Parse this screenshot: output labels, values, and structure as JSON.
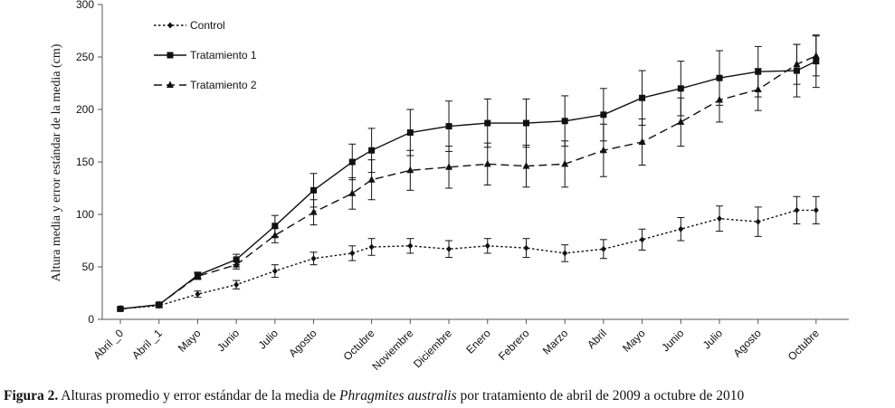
{
  "chart_data": {
    "type": "line",
    "ylabel": "Altura media y error estándar de la media (cm)",
    "xlabel": "",
    "ylim": [
      0,
      300
    ],
    "yticks": [
      0,
      50,
      100,
      150,
      200,
      250,
      300
    ],
    "grid": false,
    "legend_position": "top-left",
    "categories": [
      "Abril _0",
      "Abril _1",
      "Mayo",
      "Junio",
      "Julio",
      "Agosto",
      "Octubre",
      "Noviembre",
      "Diciembre",
      "Enero",
      "Febrero",
      "Marzo",
      "Abril",
      "Mayo",
      "Junio",
      "Julio",
      "Agosto",
      "Octubre"
    ],
    "x": [
      0,
      1,
      2,
      3,
      4,
      5,
      6.5,
      7.5,
      8.5,
      9.5,
      10.5,
      11.5,
      12.5,
      13.5,
      14.5,
      15.5,
      16.5,
      18
    ],
    "series": [
      {
        "name": "Control",
        "style": "dotted",
        "marker": "diamond",
        "x": [
          0,
          1,
          2,
          3,
          4,
          5,
          6,
          6.5,
          7.5,
          8.5,
          9.5,
          10.5,
          11.5,
          12.5,
          13.5,
          14.5,
          15.5,
          16.5,
          17.5,
          18
        ],
        "values": [
          10,
          13,
          24,
          33,
          46,
          58,
          63,
          69,
          70,
          67,
          70,
          68,
          63,
          67,
          76,
          86,
          96,
          93,
          104,
          104
        ],
        "errors": [
          1,
          2,
          3,
          4,
          6,
          6,
          7,
          8,
          7,
          8,
          7,
          9,
          8,
          9,
          10,
          11,
          12,
          14,
          13,
          13
        ]
      },
      {
        "name": "Tratamiento 1",
        "style": "solid",
        "marker": "square",
        "x": [
          0,
          1,
          2,
          3,
          4,
          5,
          6,
          6.5,
          7.5,
          8.5,
          9.5,
          10.5,
          11.5,
          12.5,
          13.5,
          14.5,
          15.5,
          16.5,
          17.5,
          18
        ],
        "values": [
          10,
          14,
          42,
          57,
          89,
          123,
          150,
          161,
          178,
          184,
          187,
          187,
          189,
          195,
          211,
          220,
          230,
          236,
          237,
          246
        ],
        "errors": [
          1,
          2,
          3,
          5,
          10,
          16,
          17,
          21,
          22,
          24,
          23,
          23,
          24,
          25,
          26,
          26,
          26,
          24,
          25,
          25
        ]
      },
      {
        "name": "Tratamiento 2",
        "style": "dashed",
        "marker": "triangle",
        "x": [
          0,
          1,
          2,
          3,
          4,
          5,
          6,
          6.5,
          7.5,
          8.5,
          9.5,
          10.5,
          11.5,
          12.5,
          13.5,
          14.5,
          15.5,
          16.5,
          17.5,
          18
        ],
        "values": [
          10,
          14,
          41,
          52,
          80,
          102,
          120,
          133,
          142,
          145,
          148,
          146,
          148,
          161,
          169,
          188,
          209,
          219,
          243,
          251
        ],
        "errors": [
          1,
          2,
          3,
          4,
          7,
          12,
          15,
          19,
          19,
          20,
          20,
          20,
          22,
          25,
          22,
          23,
          21,
          20,
          19,
          19
        ]
      }
    ]
  },
  "caption": {
    "label": "Figura 2.",
    "text_before": " Alturas promedio y error estándar de la media de ",
    "species": "Phragmites australis",
    "text_after": " por tratamiento de abril de 2009 a octubre de 2010"
  },
  "colors": {
    "line": "#111111",
    "axis": "#555555"
  }
}
